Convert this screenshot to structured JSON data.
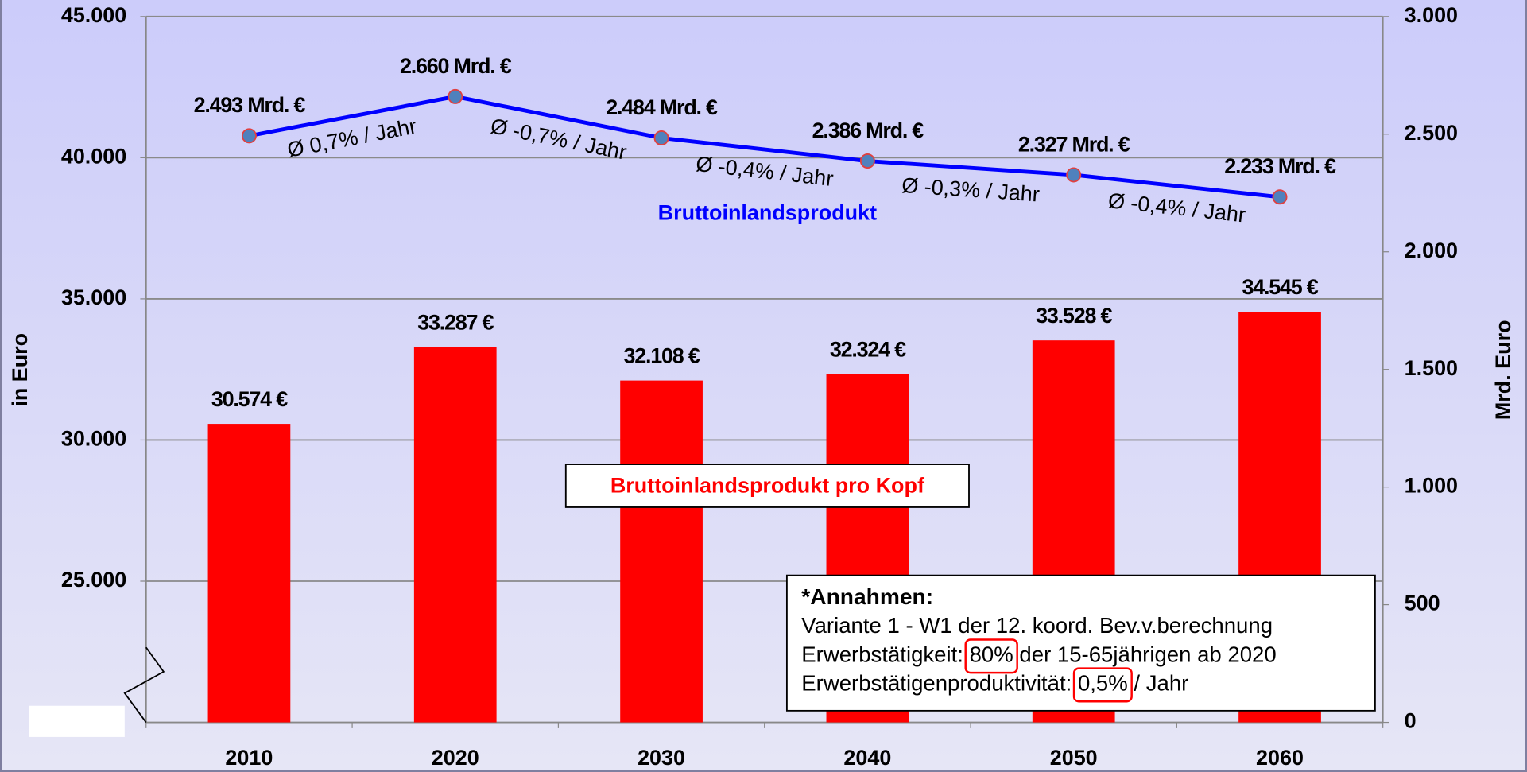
{
  "chart_data": {
    "type": "bar_line",
    "categories": [
      "2010",
      "2020",
      "2030",
      "2040",
      "2050",
      "2060"
    ],
    "series": [
      {
        "name": "Bruttoinlandsprodukt pro Kopf",
        "type": "bar",
        "color": "#ff0000",
        "values": [
          30574,
          33287,
          32108,
          32324,
          33528,
          34545
        ],
        "value_labels": [
          "30.574 €",
          "33.287 €",
          "32.108 €",
          "32.324 €",
          "33.528 €",
          "34.545 €"
        ]
      },
      {
        "name": "Bruttoinlandsprodukt",
        "type": "line",
        "axis": "y2",
        "color": "#0000ff",
        "values": [
          2493,
          2660,
          2484,
          2386,
          2327,
          2233
        ],
        "value_labels": [
          "2.493 Mrd. €",
          "2.660 Mrd. €",
          "2.484 Mrd. €",
          "2.386 Mrd. €",
          "2.327 Mrd. €",
          "2.233 Mrd. €"
        ]
      }
    ],
    "growth_labels": [
      "Ø 0,7% / Jahr",
      "Ø -0,7% / Jahr",
      "Ø -0,4% / Jahr",
      "Ø -0,3% / Jahr",
      "Ø -0,4% / Jahr"
    ],
    "ylabel": "in Euro",
    "y2label": "Mrd. Euro",
    "ylim": [
      20000,
      45000
    ],
    "yticks": [
      {
        "value": 25000,
        "label": "25.000"
      },
      {
        "value": 30000,
        "label": "30.000"
      },
      {
        "value": 35000,
        "label": "35.000"
      },
      {
        "value": 40000,
        "label": "40.000"
      },
      {
        "value": 45000,
        "label": "45.000"
      }
    ],
    "y2lim": [
      0,
      3000
    ],
    "y2ticks": [
      0,
      500,
      {
        "value": 1000,
        "label": "1.000"
      },
      {
        "value": 1500,
        "label": "1.500"
      },
      {
        "value": 2000,
        "label": "2.000"
      },
      {
        "value": 2500,
        "label": "2.500"
      },
      {
        "value": 3000,
        "label": "3.000"
      }
    ],
    "grid": true,
    "notes": [
      [
        "*Annahmen:"
      ],
      [
        "Variante 1 - W1 der 12. koord. Bev.v.berechnung"
      ],
      [
        "Erwerbstätigkeit: ",
        "80%",
        " der 15-65jährigen ab 2020"
      ],
      [
        "Erwerbstätigenproduktivität: ",
        "0,5%",
        " / Jahr"
      ]
    ]
  }
}
